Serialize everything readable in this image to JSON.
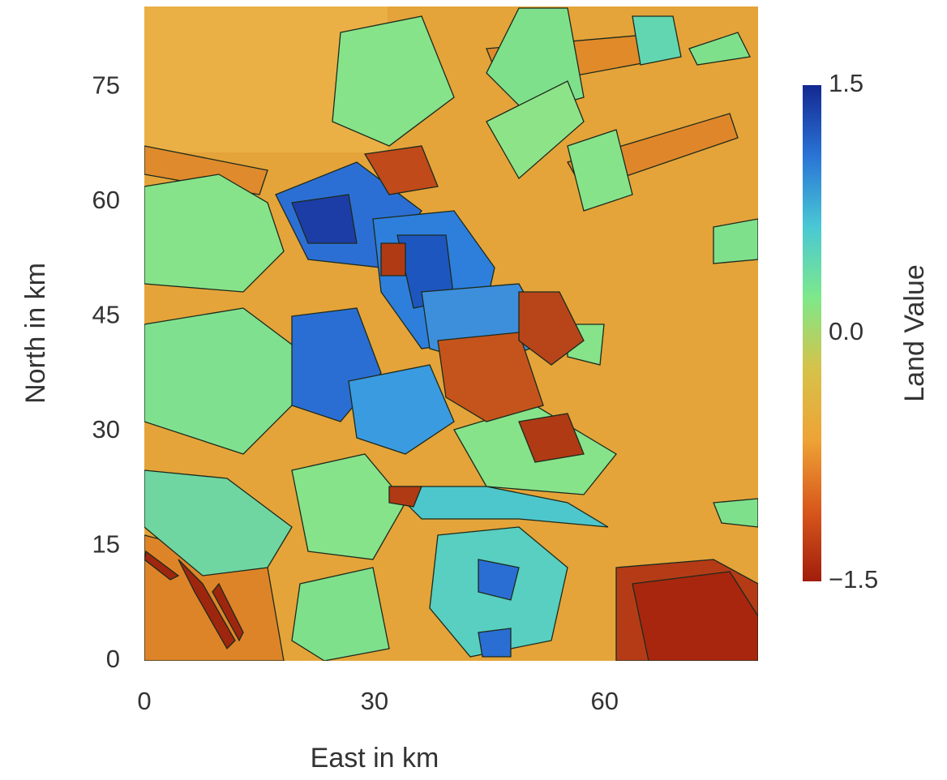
{
  "chart_data": {
    "type": "heatmap",
    "xlabel": "East in km",
    "ylabel": "North in km",
    "xlim": [
      0,
      80
    ],
    "ylim": [
      0,
      85.5
    ],
    "xticks": [
      0,
      30,
      60
    ],
    "yticks": [
      0,
      15,
      30,
      45,
      60,
      75
    ],
    "colorbar": {
      "label": "Land Value",
      "lim": [
        -1.5,
        1.5
      ],
      "ticks": [
        {
          "value": -1.5,
          "label": "−1.5"
        },
        {
          "value": 0,
          "label": "0.0"
        },
        1.5
      ],
      "colormap": [
        "#a11d0c",
        "#d8581c",
        "#eea336",
        "#d6c24a",
        "#7ee88a",
        "#49c8d4",
        "#2a74d6",
        "#132891"
      ]
    }
  }
}
